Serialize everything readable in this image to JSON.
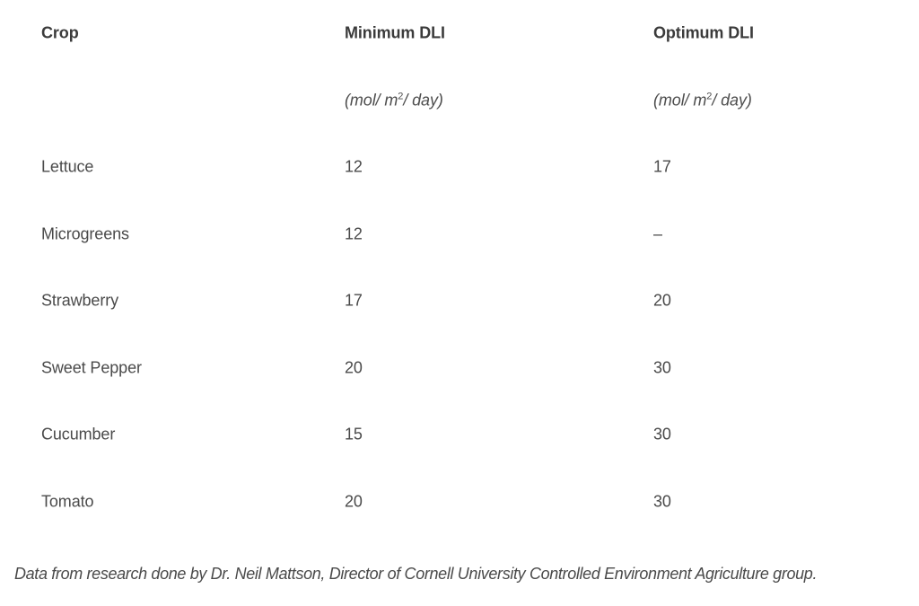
{
  "table": {
    "headers": [
      "Crop",
      "Minimum DLI",
      "Optimum DLI"
    ],
    "unit": {
      "prefix": "(mol/ m",
      "superscript": "2",
      "suffix": "/ day)"
    },
    "rows": [
      {
        "crop": "Lettuce",
        "min": "12",
        "opt": "17"
      },
      {
        "crop": "Microgreens",
        "min": "12",
        "opt": "–"
      },
      {
        "crop": "Strawberry",
        "min": "17",
        "opt": "20"
      },
      {
        "crop": "Sweet Pepper",
        "min": "20",
        "opt": "30"
      },
      {
        "crop": "Cucumber",
        "min": "15",
        "opt": "30"
      },
      {
        "crop": "Tomato",
        "min": "20",
        "opt": "30"
      }
    ]
  },
  "caption": "Data from research done by Dr. Neil Mattson, Director of Cornell University Controlled Environment Agriculture group."
}
